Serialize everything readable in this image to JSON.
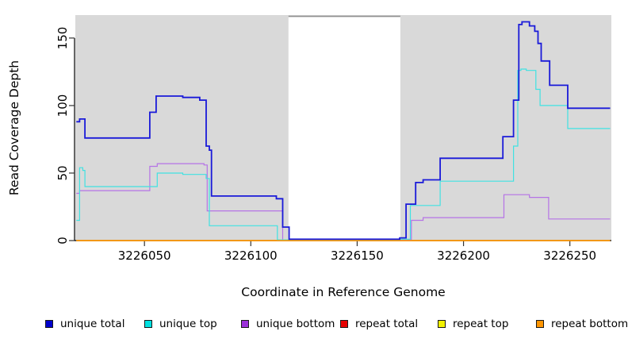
{
  "axes": {
    "x_title": "Coordinate in Reference Genome",
    "y_title": "Read Coverage Depth"
  },
  "chart_data": {
    "type": "line",
    "step": true,
    "title": "",
    "xlabel": "Coordinate in Reference Genome",
    "ylabel": "Read Coverage Depth",
    "xlim": [
      3226017.5,
      3226269.5
    ],
    "ylim": [
      0,
      167
    ],
    "x_ticks": [
      3226050,
      3226100,
      3226150,
      3226200,
      3226250
    ],
    "y_ticks": [
      0,
      50,
      100,
      150
    ],
    "grid": false,
    "legend_position": "bottom",
    "panel_background": "#d9d9d9",
    "masked_region": {
      "x_start": 3226117.7,
      "x_end": 3226170.3,
      "fill": "#ffffff",
      "border_top_color": "#8f8f8f"
    },
    "series": [
      {
        "name": "unique total",
        "line_color": "#1a1ad9",
        "swatch_color": "#0000cc",
        "line_width": 1.8,
        "steps": [
          [
            3226018,
            88
          ],
          [
            3226019.5,
            90
          ],
          [
            3226022,
            76
          ],
          [
            3226052.5,
            95
          ],
          [
            3226055.5,
            107
          ],
          [
            3226068,
            106
          ],
          [
            3226076,
            104
          ],
          [
            3226079,
            70
          ],
          [
            3226080.5,
            67
          ],
          [
            3226081.5,
            33
          ],
          [
            3226112,
            31
          ],
          [
            3226115,
            10
          ],
          [
            3226118,
            1
          ],
          [
            3226170,
            2
          ],
          [
            3226173,
            27
          ],
          [
            3226177.5,
            43
          ],
          [
            3226181,
            45
          ],
          [
            3226189,
            61
          ],
          [
            3226218.5,
            77
          ],
          [
            3226223.5,
            104
          ],
          [
            3226226,
            160
          ],
          [
            3226227.5,
            162
          ],
          [
            3226231,
            159
          ],
          [
            3226233.5,
            155
          ],
          [
            3226235,
            146
          ],
          [
            3226236.5,
            133
          ],
          [
            3226240.5,
            115
          ],
          [
            3226249,
            98
          ]
        ]
      },
      {
        "name": "unique top",
        "line_color": "#40e2e2",
        "swatch_color": "#00e0e0",
        "line_width": 1.2,
        "steps": [
          [
            3226018,
            15
          ],
          [
            3226019.5,
            54
          ],
          [
            3226021,
            52
          ],
          [
            3226022,
            40
          ],
          [
            3226056,
            50
          ],
          [
            3226068,
            49
          ],
          [
            3226079,
            46
          ],
          [
            3226080.5,
            11
          ],
          [
            3226112.5,
            0.5
          ],
          [
            3226170,
            1
          ],
          [
            3226175,
            26
          ],
          [
            3226189,
            44
          ],
          [
            3226223.5,
            70
          ],
          [
            3226225.5,
            126
          ],
          [
            3226227,
            127
          ],
          [
            3226229.5,
            126
          ],
          [
            3226234,
            112
          ],
          [
            3226236,
            100
          ],
          [
            3226249,
            83
          ]
        ]
      },
      {
        "name": "unique bottom",
        "line_color": "#b573e6",
        "swatch_color": "#9b30d9",
        "line_width": 1.2,
        "steps": [
          [
            3226018,
            35
          ],
          [
            3226019.5,
            37
          ],
          [
            3226052.5,
            55
          ],
          [
            3226056,
            57
          ],
          [
            3226078,
            56
          ],
          [
            3226079.5,
            22
          ],
          [
            3226115,
            0.5
          ],
          [
            3226175.5,
            15
          ],
          [
            3226181,
            17
          ],
          [
            3226219,
            34
          ],
          [
            3226231,
            32
          ],
          [
            3226240,
            16
          ]
        ]
      },
      {
        "name": "repeat total",
        "line_color": "#e60000",
        "swatch_color": "#e60000",
        "line_width": 1.2,
        "steps": [
          [
            3226018,
            0
          ]
        ]
      },
      {
        "name": "repeat top",
        "line_color": "#f2f200",
        "swatch_color": "#f2f200",
        "line_width": 1.2,
        "steps": [
          [
            3226018,
            0
          ]
        ]
      },
      {
        "name": "repeat bottom",
        "line_color": "#ff9500",
        "swatch_color": "#ff9500",
        "line_width": 1.6,
        "steps": [
          [
            3226018,
            0
          ]
        ]
      }
    ]
  }
}
